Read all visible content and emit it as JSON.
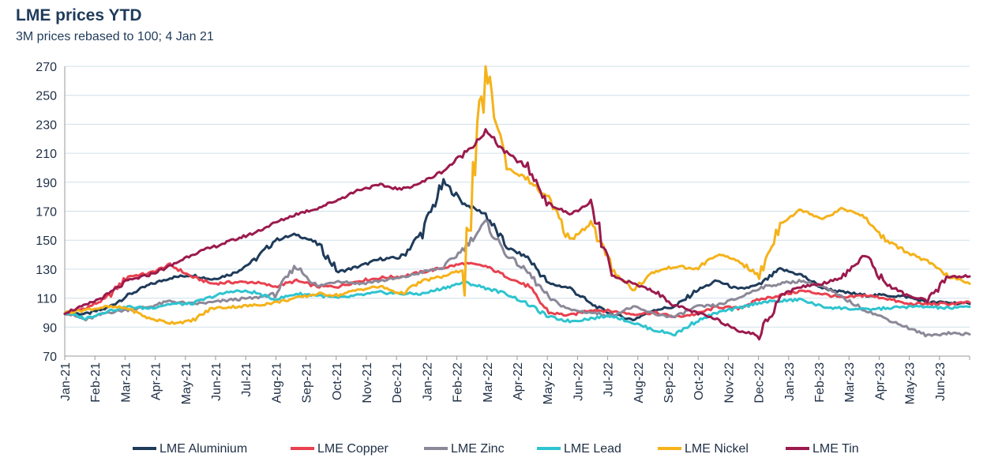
{
  "chart_data": {
    "type": "line",
    "title": "LME prices YTD",
    "subtitle": "3M prices rebased to 100; 4 Jan 21",
    "xlabel": "",
    "ylabel": "",
    "ylim": [
      70,
      270
    ],
    "yticks": [
      70,
      90,
      110,
      130,
      150,
      170,
      190,
      210,
      230,
      250,
      270
    ],
    "xticks": [
      "Jan-21",
      "Feb-21",
      "Mar-21",
      "Apr-21",
      "May-21",
      "Jun-21",
      "Jul-21",
      "Aug-21",
      "Sep-21",
      "Oct-21",
      "Nov-21",
      "Dec-21",
      "Jan-22",
      "Feb-22",
      "Mar-22",
      "Apr-22",
      "May-22",
      "Jun-22",
      "Jul-22",
      "Aug-22",
      "Sep-22",
      "Oct-22",
      "Nov-22",
      "Dec-22",
      "Jan-23",
      "Feb-23",
      "Mar-23",
      "Apr-23",
      "May-23",
      "Jun-23"
    ],
    "grid": "horizontal",
    "legend": "bottom",
    "series": [
      {
        "name": "LME Aluminium",
        "color": "#1f3b5a",
        "values": [
          100,
          99,
          103,
          112,
          119,
          124,
          126,
          123,
          127,
          136,
          150,
          154,
          148,
          128,
          132,
          137,
          138,
          156,
          190,
          175,
          168,
          145,
          138,
          120,
          117,
          106,
          99,
          95,
          102,
          104,
          115,
          122,
          116,
          119,
          130,
          126,
          117,
          114,
          112,
          112,
          111,
          107,
          107,
          106
        ]
      },
      {
        "name": "LME Copper",
        "color": "#e8414f",
        "values": [
          100,
          103,
          110,
          125,
          127,
          133,
          125,
          120,
          121,
          121,
          118,
          122,
          118,
          118,
          122,
          124,
          125,
          128,
          131,
          134,
          132,
          125,
          118,
          100,
          98,
          102,
          101,
          99,
          100,
          97,
          99,
          104,
          103,
          109,
          112,
          115,
          113,
          110,
          112,
          110,
          106,
          106,
          106,
          107
        ]
      },
      {
        "name": "LME Zinc",
        "color": "#8c8898",
        "values": [
          100,
          95,
          100,
          102,
          104,
          108,
          106,
          107,
          109,
          110,
          113,
          132,
          118,
          122,
          120,
          122,
          124,
          128,
          131,
          145,
          162,
          140,
          128,
          110,
          102,
          100,
          98,
          104,
          99,
          97,
          104,
          105,
          110,
          117,
          120,
          122,
          118,
          110,
          102,
          96,
          90,
          84,
          86,
          85
        ]
      },
      {
        "name": "LME Lead",
        "color": "#2ec4cf",
        "values": [
          100,
          96,
          101,
          104,
          103,
          106,
          106,
          111,
          115,
          114,
          109,
          113,
          112,
          110,
          112,
          114,
          113,
          113,
          117,
          121,
          117,
          113,
          106,
          97,
          94,
          96,
          98,
          93,
          88,
          85,
          94,
          100,
          103,
          107,
          108,
          109,
          104,
          103,
          102,
          103,
          104,
          104,
          103,
          104
        ]
      },
      {
        "name": "LME Nickel",
        "color": "#f5b21a",
        "values": [
          100,
          102,
          104,
          103,
          96,
          93,
          94,
          103,
          104,
          105,
          107,
          110,
          113,
          112,
          116,
          118,
          113,
          122,
          125,
          130,
          268,
          200,
          192,
          178,
          150,
          162,
          130,
          116,
          128,
          132,
          130,
          140,
          136,
          125,
          162,
          171,
          165,
          172,
          166,
          150,
          142,
          135,
          125,
          120
        ]
      },
      {
        "name": "LME Tin",
        "color": "#9b1a4d",
        "values": [
          100,
          105,
          112,
          122,
          126,
          132,
          140,
          145,
          150,
          155,
          162,
          168,
          172,
          178,
          185,
          188,
          185,
          190,
          198,
          210,
          225,
          210,
          200,
          175,
          168,
          175,
          125,
          120,
          115,
          105,
          100,
          95,
          88,
          84,
          112,
          118,
          120,
          125,
          140,
          120,
          112,
          108,
          125,
          125
        ]
      }
    ]
  },
  "legend_items": [
    "LME Aluminium",
    "LME Copper",
    "LME Zinc",
    "LME Lead",
    "LME Nickel",
    "LME Tin"
  ]
}
